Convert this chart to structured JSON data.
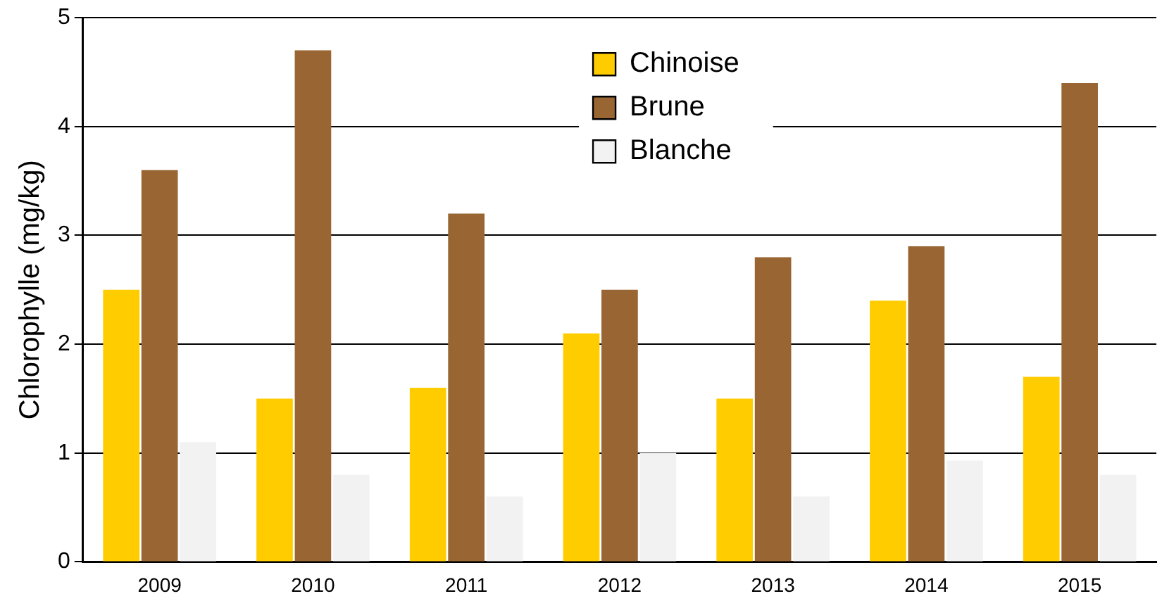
{
  "chart_data": {
    "type": "bar",
    "ylabel": "Chlorophylle (mg/kg)",
    "categories": [
      "2009",
      "2010",
      "2011",
      "2012",
      "2013",
      "2014",
      "2015"
    ],
    "series": [
      {
        "name": "Chinoise",
        "color": "#ffcc00",
        "values": [
          2.5,
          1.5,
          1.6,
          2.1,
          1.5,
          2.4,
          1.7
        ]
      },
      {
        "name": "Brune",
        "color": "#996633",
        "values": [
          3.6,
          4.7,
          3.2,
          2.5,
          2.8,
          2.9,
          4.4
        ]
      },
      {
        "name": "Blanche",
        "color": "#f2f2f2",
        "values": [
          1.1,
          0.8,
          0.6,
          1.0,
          0.6,
          0.93,
          0.8
        ]
      }
    ],
    "ylim": [
      0,
      5
    ],
    "yticks": [
      0,
      1,
      2,
      3,
      4,
      5
    ],
    "grid": "y",
    "legend": "top"
  }
}
